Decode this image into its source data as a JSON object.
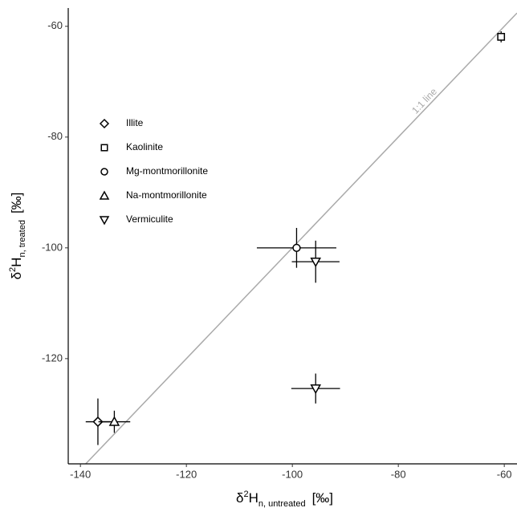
{
  "chart_data": {
    "type": "scatter",
    "xlabel": {
      "symbol": "δ",
      "sup": "2",
      "main": "H",
      "sub": "n, untreated",
      "unit": "[‰]"
    },
    "ylabel": {
      "symbol": "δ",
      "sup": "2",
      "main": "H",
      "sub": "n, treated",
      "unit": "[‰]"
    },
    "xlim": [
      -142.3,
      -57.6
    ],
    "ylim": [
      -139,
      -56.7
    ],
    "xticks": [
      -140,
      -120,
      -100,
      -80,
      -60
    ],
    "yticks": [
      -120,
      -100,
      -80,
      -60
    ],
    "reference_line": {
      "label": "1:1 line",
      "color": "#aaaaaa"
    },
    "legend": "upper left",
    "series": [
      {
        "name": "Illite",
        "marker": "diamond",
        "color": "#000000",
        "x": [
          -136.7
        ],
        "y": [
          -131.4
        ],
        "xerr": [
          2.3
        ],
        "yerr": [
          4.2
        ]
      },
      {
        "name": "Kaolinite",
        "marker": "square",
        "color": "#000000",
        "x": [
          -60.6
        ],
        "y": [
          -61.9
        ],
        "xerr": [
          0.5
        ],
        "yerr": [
          1
        ]
      },
      {
        "name": "Mg-montmorillonite",
        "marker": "circle",
        "color": "#000000",
        "x": [
          -99.2
        ],
        "y": [
          -100
        ],
        "xerr": [
          7.5
        ],
        "yerr": [
          3.6
        ]
      },
      {
        "name": "Na-montmorillonite",
        "marker": "triangle-up",
        "color": "#000000",
        "x": [
          -133.6
        ],
        "y": [
          -131.4
        ],
        "xerr": [
          3
        ],
        "yerr": [
          2
        ]
      },
      {
        "name": "Vermiculite",
        "marker": "triangle-down",
        "color": "#000000",
        "x": [
          -95.6,
          -95.6
        ],
        "y": [
          -102.5,
          -125.4
        ],
        "xerr": [
          4.5,
          4.6
        ],
        "yerr": [
          3.8,
          2.7
        ]
      }
    ]
  }
}
